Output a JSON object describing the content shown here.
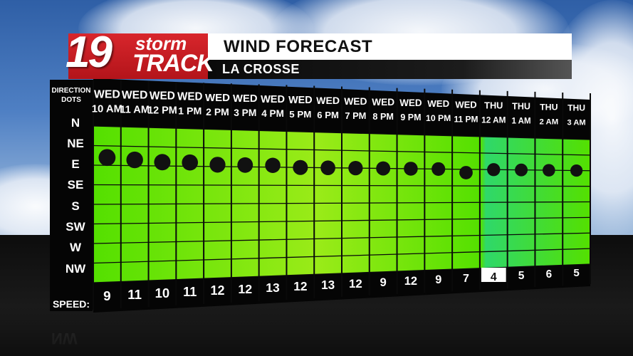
{
  "header": {
    "title": "WIND FORECAST",
    "location": "LA CROSSE"
  },
  "logo": {
    "number": "19",
    "storm": "storm",
    "track": "TRACK"
  },
  "row_header": {
    "top": "DIRECTION",
    "bottom": "DOTS"
  },
  "speed_label": "SPEED:",
  "mirror_text": "NW",
  "colors": {
    "grid_bright": "#54e000",
    "grid_light": "#9aeb18",
    "grid_teal": "#2fd86a",
    "dot": "#111111",
    "highlight_cell": "#ffffff"
  },
  "chart_data": {
    "type": "scatter",
    "title": "WIND FORECAST",
    "y_categories": [
      "N",
      "NE",
      "E",
      "SE",
      "S",
      "SW",
      "W",
      "NW"
    ],
    "columns": [
      {
        "day": "WED",
        "time": "10 AM",
        "direction": 1.6,
        "speed": 9
      },
      {
        "day": "WED",
        "time": "11 AM",
        "direction": 1.7,
        "speed": 11
      },
      {
        "day": "WED",
        "time": "12 PM",
        "direction": 1.8,
        "speed": 10
      },
      {
        "day": "WED",
        "time": "1 PM",
        "direction": 1.8,
        "speed": 11
      },
      {
        "day": "WED",
        "time": "2 PM",
        "direction": 1.9,
        "speed": 12
      },
      {
        "day": "WED",
        "time": "3 PM",
        "direction": 1.9,
        "speed": 12
      },
      {
        "day": "WED",
        "time": "4 PM",
        "direction": 1.9,
        "speed": 13
      },
      {
        "day": "WED",
        "time": "5 PM",
        "direction": 2.0,
        "speed": 12
      },
      {
        "day": "WED",
        "time": "6 PM",
        "direction": 2.0,
        "speed": 13
      },
      {
        "day": "WED",
        "time": "7 PM",
        "direction": 2.0,
        "speed": 12
      },
      {
        "day": "WED",
        "time": "8 PM",
        "direction": 2.0,
        "speed": 9
      },
      {
        "day": "WED",
        "time": "9 PM",
        "direction": 2.0,
        "speed": 12
      },
      {
        "day": "WED",
        "time": "10 PM",
        "direction": 2.0,
        "speed": 9
      },
      {
        "day": "WED",
        "time": "11 PM",
        "direction": 2.2,
        "speed": 7
      },
      {
        "day": "THU",
        "time": "12 AM",
        "direction": 2.0,
        "speed": 4
      },
      {
        "day": "THU",
        "time": "1 AM",
        "direction": 2.0,
        "speed": 5
      },
      {
        "day": "THU",
        "time": "2 AM",
        "direction": 2.0,
        "speed": 6
      },
      {
        "day": "THU",
        "time": "3 AM",
        "direction": 2.0,
        "speed": 5
      }
    ],
    "highlighted_speed_index": 14
  }
}
